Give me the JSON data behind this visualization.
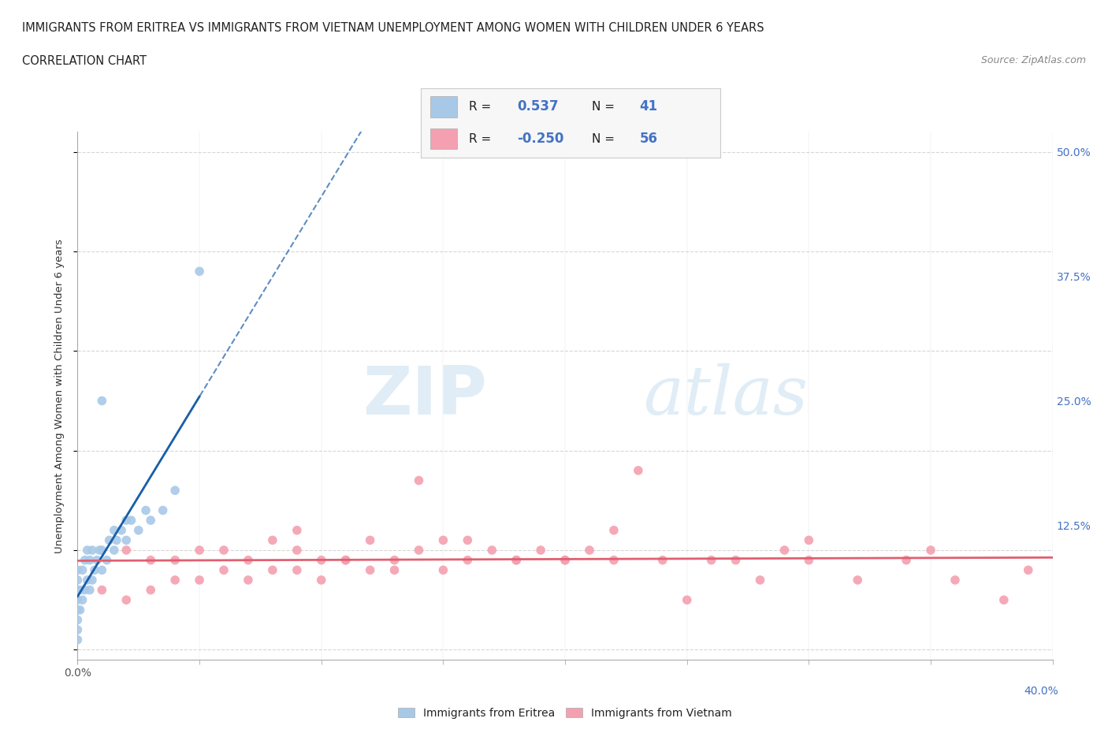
{
  "title_line1": "IMMIGRANTS FROM ERITREA VS IMMIGRANTS FROM VIETNAM UNEMPLOYMENT AMONG WOMEN WITH CHILDREN UNDER 6 YEARS",
  "title_line2": "CORRELATION CHART",
  "source_text": "Source: ZipAtlas.com",
  "ylabel": "Unemployment Among Women with Children Under 6 years",
  "xlim": [
    0.0,
    0.4
  ],
  "ylim": [
    -0.01,
    0.52
  ],
  "ytick_vals": [
    0.0,
    0.125,
    0.25,
    0.375,
    0.5
  ],
  "ytick_labels_right": [
    "",
    "12.5%",
    "25.0%",
    "37.5%",
    "50.0%"
  ],
  "xtick_vals": [
    0.0,
    0.4
  ],
  "xtick_labels": [
    "0.0%",
    "40.0%"
  ],
  "watermark_zip": "ZIP",
  "watermark_atlas": "atlas",
  "legend_eritrea_R": "0.537",
  "legend_eritrea_N": "41",
  "legend_vietnam_R": "-0.250",
  "legend_vietnam_N": "56",
  "eritrea_color": "#a8c8e8",
  "vietnam_color": "#f4a0b0",
  "eritrea_line_color": "#1a5fa8",
  "vietnam_line_color": "#e06070",
  "background_color": "#ffffff",
  "grid_color": "#cccccc",
  "eritrea_x": [
    0.0,
    0.0,
    0.0,
    0.0,
    0.0,
    0.0,
    0.0,
    0.0,
    0.001,
    0.001,
    0.002,
    0.002,
    0.003,
    0.003,
    0.004,
    0.004,
    0.005,
    0.005,
    0.006,
    0.006,
    0.007,
    0.008,
    0.009,
    0.01,
    0.01,
    0.01,
    0.012,
    0.013,
    0.015,
    0.015,
    0.016,
    0.018,
    0.02,
    0.02,
    0.022,
    0.025,
    0.028,
    0.03,
    0.035,
    0.04,
    0.05
  ],
  "eritrea_y": [
    0.01,
    0.02,
    0.03,
    0.04,
    0.05,
    0.06,
    0.07,
    0.08,
    0.04,
    0.06,
    0.05,
    0.08,
    0.06,
    0.09,
    0.07,
    0.1,
    0.06,
    0.09,
    0.07,
    0.1,
    0.08,
    0.09,
    0.1,
    0.08,
    0.1,
    0.25,
    0.09,
    0.11,
    0.1,
    0.12,
    0.11,
    0.12,
    0.11,
    0.13,
    0.13,
    0.12,
    0.14,
    0.13,
    0.14,
    0.16,
    0.38
  ],
  "vietnam_x": [
    0.01,
    0.02,
    0.02,
    0.03,
    0.03,
    0.04,
    0.04,
    0.05,
    0.05,
    0.06,
    0.06,
    0.07,
    0.07,
    0.08,
    0.08,
    0.09,
    0.09,
    0.1,
    0.1,
    0.11,
    0.12,
    0.12,
    0.13,
    0.14,
    0.15,
    0.15,
    0.16,
    0.17,
    0.18,
    0.19,
    0.2,
    0.21,
    0.22,
    0.23,
    0.24,
    0.25,
    0.26,
    0.27,
    0.28,
    0.29,
    0.3,
    0.32,
    0.34,
    0.36,
    0.38,
    0.39,
    0.14,
    0.18,
    0.22,
    0.3,
    0.35,
    0.09,
    0.11,
    0.13,
    0.16,
    0.2
  ],
  "vietnam_y": [
    0.06,
    0.05,
    0.1,
    0.06,
    0.09,
    0.07,
    0.09,
    0.07,
    0.1,
    0.08,
    0.1,
    0.07,
    0.09,
    0.08,
    0.11,
    0.08,
    0.1,
    0.07,
    0.09,
    0.09,
    0.08,
    0.11,
    0.09,
    0.1,
    0.08,
    0.11,
    0.09,
    0.1,
    0.09,
    0.1,
    0.09,
    0.1,
    0.09,
    0.18,
    0.09,
    0.05,
    0.09,
    0.09,
    0.07,
    0.1,
    0.09,
    0.07,
    0.09,
    0.07,
    0.05,
    0.08,
    0.17,
    0.09,
    0.12,
    0.11,
    0.1,
    0.12,
    0.09,
    0.08,
    0.11,
    0.09
  ]
}
